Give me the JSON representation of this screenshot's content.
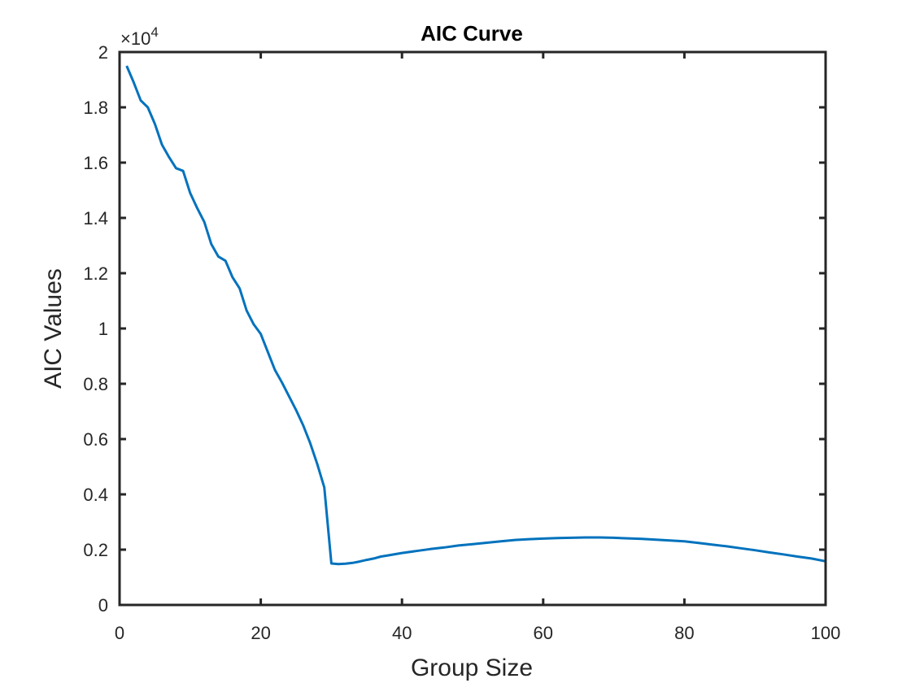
{
  "chart_data": {
    "type": "line",
    "title": "AIC Curve",
    "xlabel": "Group Size",
    "ylabel": "AIC Values",
    "xlim": [
      0,
      100
    ],
    "ylim": [
      0,
      20000
    ],
    "xticks": [
      0,
      20,
      40,
      60,
      80,
      100
    ],
    "yticks": [
      0,
      2000,
      4000,
      6000,
      8000,
      10000,
      12000,
      14000,
      16000,
      18000,
      20000
    ],
    "ytick_labels": [
      "0",
      "0.2",
      "0.4",
      "0.6",
      "0.8",
      "1",
      "1.2",
      "1.4",
      "1.6",
      "1.8",
      "2"
    ],
    "y_exponent_label": {
      "base": "×10",
      "power": "4"
    },
    "grid": false,
    "series_color": "#0072BD",
    "series": [
      {
        "x": [
          1,
          2,
          3,
          4,
          5,
          6,
          7,
          8,
          9,
          10,
          11,
          12,
          13,
          14,
          15,
          16,
          17,
          18,
          19,
          20,
          21,
          22,
          23,
          24,
          25,
          26,
          27,
          28,
          29,
          30,
          31,
          32,
          33,
          34,
          35,
          36,
          37,
          38,
          40,
          42,
          44,
          46,
          48,
          50,
          52,
          54,
          56,
          58,
          60,
          62,
          64,
          66,
          68,
          70,
          72,
          74,
          76,
          78,
          80,
          82,
          84,
          86,
          88,
          90,
          92,
          94,
          96,
          98,
          100
        ],
        "values": [
          19500,
          18900,
          18250,
          18000,
          17400,
          16650,
          16200,
          15800,
          15700,
          14900,
          14350,
          13850,
          13050,
          12600,
          12450,
          11850,
          11450,
          10650,
          10150,
          9800,
          9150,
          8500,
          8050,
          7550,
          7050,
          6500,
          5850,
          5100,
          4250,
          1500,
          1480,
          1490,
          1520,
          1570,
          1630,
          1680,
          1750,
          1790,
          1880,
          1950,
          2020,
          2080,
          2150,
          2200,
          2250,
          2300,
          2350,
          2380,
          2400,
          2420,
          2430,
          2440,
          2440,
          2430,
          2410,
          2390,
          2360,
          2330,
          2300,
          2240,
          2180,
          2120,
          2050,
          1980,
          1900,
          1830,
          1750,
          1680,
          1580
        ]
      }
    ]
  }
}
